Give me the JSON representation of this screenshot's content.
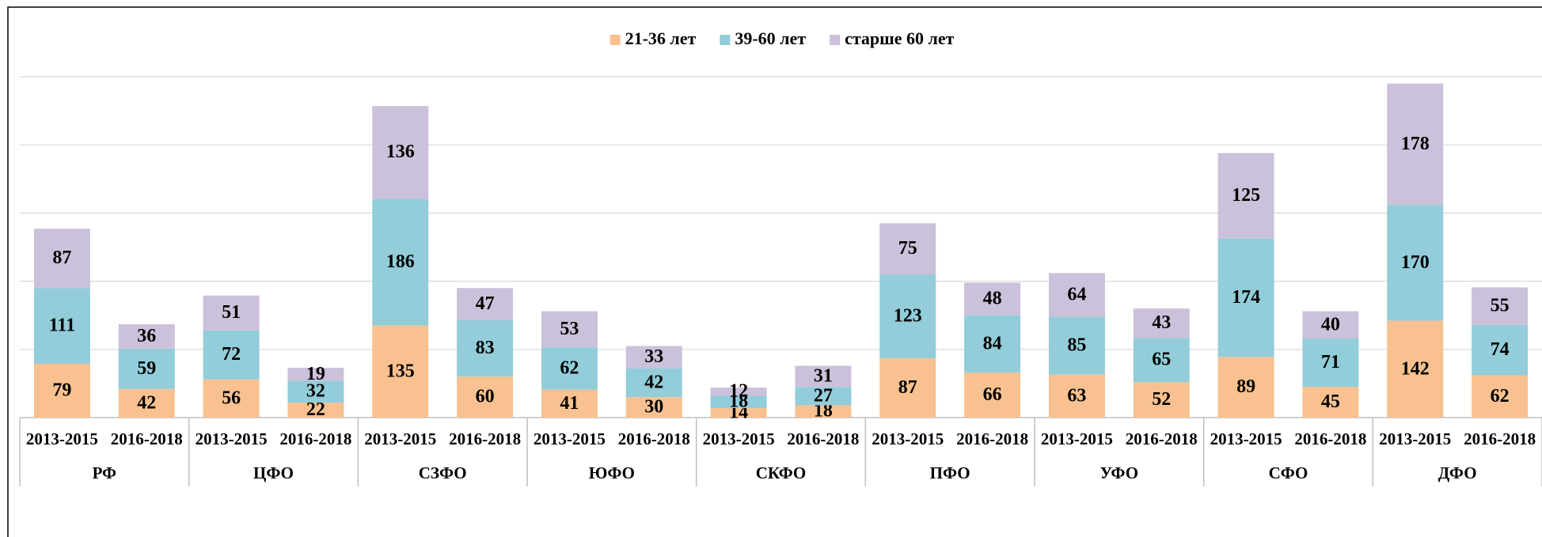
{
  "chart_data": {
    "type": "stacked_bar",
    "groups": [
      "РФ",
      "ЦФО",
      "СЗФО",
      "ЮФО",
      "СКФО",
      "ПФО",
      "УФО",
      "СФО",
      "ДФО"
    ],
    "categories": [
      "2013-2015",
      "2016-2018",
      "2013-2015",
      "2016-2018",
      "2013-2015",
      "2016-2018",
      "2013-2015",
      "2016-2018",
      "2013-2015",
      "2016-2018",
      "2013-2015",
      "2016-2018",
      "2013-2015",
      "2016-2018",
      "2013-2015",
      "2016-2018",
      "2013-2015",
      "2016-2018"
    ],
    "series": [
      {
        "name": "21-36 лет",
        "color": "#f8c18f",
        "values": [
          79,
          42,
          56,
          22,
          135,
          60,
          41,
          30,
          14,
          18,
          87,
          66,
          63,
          52,
          89,
          45,
          142,
          62
        ]
      },
      {
        "name": "39-60 лет",
        "color": "#92cdd9",
        "values": [
          111,
          59,
          72,
          32,
          186,
          83,
          62,
          42,
          18,
          27,
          123,
          84,
          85,
          65,
          174,
          71,
          170,
          74
        ]
      },
      {
        "name": "старше 60 лет",
        "color": "#ccc1da",
        "values": [
          87,
          36,
          51,
          19,
          136,
          47,
          53,
          33,
          12,
          31,
          75,
          48,
          64,
          43,
          125,
          40,
          178,
          55
        ]
      }
    ],
    "ylim": [
      0,
      500
    ],
    "yticks": [
      0,
      100,
      200,
      300,
      400,
      500
    ],
    "grid": true,
    "legend": "top"
  }
}
